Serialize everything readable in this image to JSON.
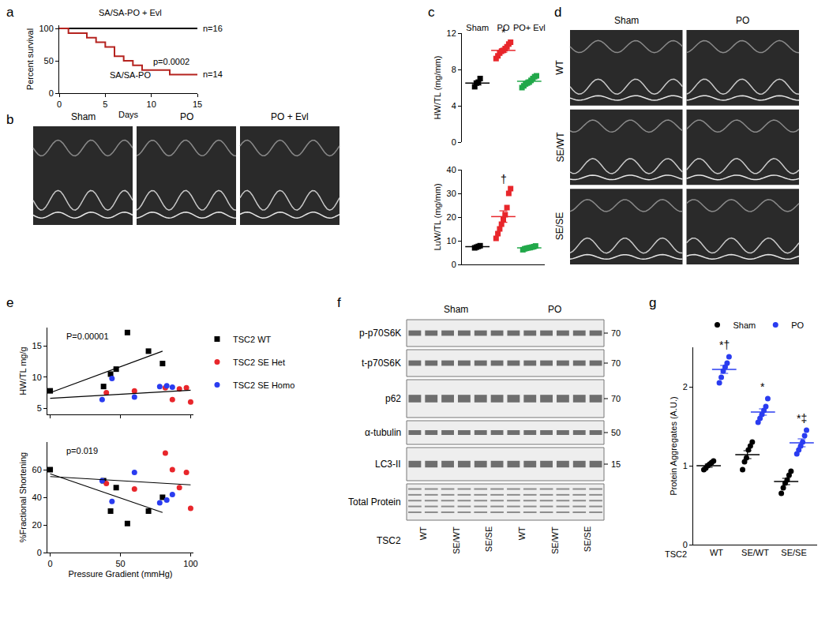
{
  "chart_data": [
    {
      "panel": "a",
      "type": "line",
      "xlabel": "Days",
      "ylabel": "Percent survival",
      "xlim": [
        0,
        15
      ],
      "ylim": [
        0,
        105
      ],
      "xticks": [
        0,
        5,
        10,
        15
      ],
      "yticks": [
        0,
        50,
        100
      ],
      "line_style": "step",
      "series": [
        {
          "name": "SA/SA-PO + Evl",
          "color": "#000000",
          "x": [
            0,
            15
          ],
          "values": [
            100,
            100
          ]
        },
        {
          "name": "SA/SA-PO",
          "color": "#b5231f",
          "x": [
            0,
            1,
            3,
            4,
            5,
            6,
            7,
            8,
            9,
            12,
            15
          ],
          "values": [
            100,
            92.9,
            85.7,
            78.6,
            71.4,
            57.1,
            50,
            42.9,
            35.7,
            28.6,
            28.6
          ]
        }
      ],
      "annotations": [
        "n=16",
        "p=0.0002",
        "n=14"
      ]
    },
    {
      "panel": "c",
      "type": "scatter",
      "categories": [
        "Sham",
        "PO",
        "PO+ Evl"
      ],
      "ylabel": "HW/TL (mg/mm)",
      "ylim": [
        0,
        12
      ],
      "yticks": [
        0,
        4,
        8,
        12
      ],
      "marker": "square",
      "colors": [
        "#000000",
        "#e8262b",
        "#22a84a"
      ],
      "values": [
        [
          6.1,
          6.5,
          6.6,
          7.0
        ],
        [
          9.2,
          9.5,
          9.8,
          10.0,
          10.1,
          10.3,
          10.5,
          10.8,
          11.0
        ],
        [
          6.0,
          6.2,
          6.4,
          6.5,
          6.6,
          6.8,
          7.0,
          7.2,
          7.3
        ]
      ],
      "means": [
        6.5,
        10.1,
        6.7
      ],
      "sems": [
        0.2,
        0.2,
        0.15
      ],
      "annotations": [
        {
          "text": "*",
          "category": "PO"
        }
      ]
    },
    {
      "panel": "c",
      "type": "scatter",
      "categories": [
        "Sham",
        "PO",
        "PO+ Evl"
      ],
      "ylabel": "LuW/TL (mg/mm)",
      "ylim": [
        0,
        40
      ],
      "yticks": [
        0,
        10,
        20,
        30,
        40
      ],
      "tick_labels": "y",
      "marker": "square",
      "colors": [
        "#000000",
        "#e8262b",
        "#22a84a"
      ],
      "values": [
        [
          7.0,
          7.3,
          7.6,
          7.9
        ],
        [
          11,
          13,
          15,
          17,
          19,
          21,
          24,
          30,
          32
        ],
        [
          6.2,
          6.6,
          6.8,
          7.0,
          7.1,
          7.3,
          7.5,
          7.8
        ]
      ],
      "means": [
        7.5,
        20.2,
        7.0
      ],
      "sems": [
        0.2,
        2.4,
        0.2
      ],
      "annotations": [
        {
          "text": "†",
          "category": "PO"
        }
      ]
    },
    {
      "panel": "e",
      "type": "scatter",
      "ylabel": "HW/TL mg/g",
      "xlim": [
        -2,
        102
      ],
      "ylim": [
        4,
        18
      ],
      "xticks": [
        0,
        50,
        100
      ],
      "yticks": [
        5,
        10,
        15
      ],
      "tick_labels": "y",
      "legend": "right",
      "series": [
        {
          "name": "TSC2 WT",
          "color": "#000000",
          "marker": "square",
          "x": [
            0,
            38,
            43,
            47,
            55,
            70,
            80
          ],
          "values": [
            7.8,
            8.5,
            10.5,
            11.3,
            17.2,
            14.2,
            12.2
          ]
        },
        {
          "name": "TSC2 SE Het",
          "color": "#e8262b",
          "marker": "circle",
          "x": [
            40,
            60,
            82,
            87,
            92,
            97,
            100
          ],
          "values": [
            7.5,
            7.8,
            8.3,
            6.4,
            8.1,
            8.3,
            6.0
          ]
        },
        {
          "name": "TSC2 SE Homo",
          "color": "#2a3cf0",
          "marker": "circle",
          "x": [
            37,
            44,
            60,
            78,
            83,
            87
          ],
          "values": [
            6.4,
            9.8,
            6.8,
            8.5,
            8.6,
            8.4
          ]
        }
      ],
      "fits": [
        {
          "color": "#000000",
          "x": [
            0,
            80
          ],
          "values": [
            7.5,
            14.2
          ]
        },
        {
          "color": "#000000",
          "x": [
            0,
            100
          ],
          "values": [
            6.6,
            7.9
          ]
        }
      ],
      "annotations": [
        "P=0.00001"
      ]
    },
    {
      "panel": "e",
      "type": "scatter",
      "xlabel": "Pressure Gradient (mmHg)",
      "ylabel": "%Fractional Shortening",
      "xlim": [
        -2,
        102
      ],
      "ylim": [
        0,
        80
      ],
      "xticks": [
        0,
        50,
        100
      ],
      "yticks": [
        0,
        20,
        40,
        60
      ],
      "series": [
        {
          "name": "TSC2 WT",
          "color": "#000000",
          "marker": "square",
          "x": [
            0,
            38,
            43,
            47,
            55,
            70,
            80
          ],
          "values": [
            60,
            52,
            30,
            47,
            21,
            30,
            40
          ]
        },
        {
          "name": "TSC2 SE Het",
          "color": "#e8262b",
          "marker": "circle",
          "x": [
            40,
            60,
            82,
            87,
            92,
            97,
            100
          ],
          "values": [
            50,
            46,
            72,
            60,
            47,
            58,
            32
          ]
        },
        {
          "name": "TSC2 SE Homo",
          "color": "#2a3cf0",
          "marker": "circle",
          "x": [
            37,
            44,
            60,
            78,
            83,
            87
          ],
          "values": [
            52,
            37,
            58,
            36,
            38,
            42
          ]
        }
      ],
      "fits": [
        {
          "color": "#000000",
          "x": [
            0,
            80
          ],
          "values": [
            57,
            29
          ]
        },
        {
          "color": "#000000",
          "x": [
            0,
            100
          ],
          "values": [
            55,
            49
          ]
        }
      ],
      "annotations": [
        "p=0.019"
      ]
    },
    {
      "panel": "g",
      "type": "scatter",
      "categories": [
        "WT",
        "SE/WT",
        "SE/SE"
      ],
      "xlabel": "TSC2",
      "ylabel": "Protein Aggregates (A.U.)",
      "ylim": [
        0,
        2.5
      ],
      "yticks": [
        0,
        1,
        2
      ],
      "legend": "top",
      "series": [
        {
          "name": "Sham",
          "color": "#000000",
          "marker": "circle",
          "values": [
            [
              0.95,
              0.97,
              1.0,
              1.02,
              1.04,
              1.06
            ],
            [
              0.95,
              1.05,
              1.1,
              1.2,
              1.25,
              1.3
            ],
            [
              0.65,
              0.72,
              0.78,
              0.82,
              0.88,
              0.93
            ]
          ],
          "means": [
            1.0,
            1.14,
            0.8
          ],
          "sems": [
            0.02,
            0.05,
            0.04
          ]
        },
        {
          "name": "PO",
          "color": "#2a3cf0",
          "marker": "circle",
          "values": [
            [
              2.05,
              2.12,
              2.2,
              2.25,
              2.3,
              2.38
            ],
            [
              1.55,
              1.6,
              1.65,
              1.7,
              1.75,
              1.85
            ],
            [
              1.15,
              1.2,
              1.25,
              1.3,
              1.38,
              1.45
            ]
          ],
          "means": [
            2.22,
            1.68,
            1.29
          ],
          "sems": [
            0.05,
            0.04,
            0.05
          ]
        }
      ],
      "annotations": [
        {
          "text": "*†",
          "category": "WT"
        },
        {
          "text": "*",
          "category": "SE/WT"
        },
        {
          "text": "*‡",
          "category": "SE/SE"
        }
      ]
    }
  ],
  "echo": [
    {
      "panel": "b",
      "columns": [
        "Sham",
        "PO",
        "PO + Evl"
      ]
    },
    {
      "panel": "d",
      "columns": [
        "Sham",
        "PO"
      ],
      "rows": [
        "WT",
        "SE/WT",
        "SE/SE"
      ]
    }
  ],
  "blot": {
    "panel": "f",
    "groups": [
      "Sham",
      "PO"
    ],
    "lanes": [
      "WT",
      "SE/WT",
      "SE/SE"
    ],
    "lane_title": "TSC2",
    "rows": [
      {
        "label": "p-p70S6K",
        "kda": 70
      },
      {
        "label": "t-p70S6K",
        "kda": 70
      },
      {
        "label": "p62",
        "kda": 70
      },
      {
        "label": "α-tubulin",
        "kda": 50
      },
      {
        "label": "LC3-II",
        "kda": 15
      },
      {
        "label": "Total Protein"
      }
    ]
  }
}
